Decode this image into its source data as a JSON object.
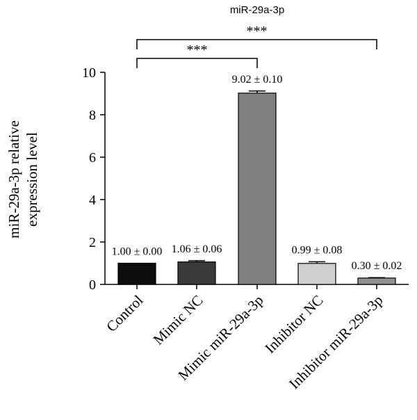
{
  "chart_data": {
    "type": "bar",
    "title": "miR-29a-3p",
    "ylabel_line1": "miR-29a-3p relative",
    "ylabel_line2": "expression level",
    "xlabel": "",
    "ylim": [
      0,
      10
    ],
    "yticks": [
      0,
      2,
      4,
      6,
      8,
      10
    ],
    "categories": [
      "Control",
      "Mimic NC",
      "Mimic miR-29a-3p",
      "Inhibitor NC",
      "Inhibitor miR-29a-3p"
    ],
    "values": [
      1.0,
      1.06,
      9.02,
      0.99,
      0.3
    ],
    "errors": [
      0.0,
      0.06,
      0.1,
      0.08,
      0.02
    ],
    "value_labels": [
      "1.00 ± 0.00",
      "1.06 ± 0.06",
      "9.02 ± 0.10",
      "0.99 ± 0.08",
      "0.30 ± 0.02"
    ],
    "bar_colors": [
      "#0d0d0d",
      "#3a3a3a",
      "#7f7f7f",
      "#cfcfcf",
      "#8f8f8f"
    ],
    "significance": [
      {
        "from": "Control",
        "to": "Mimic miR-29a-3p",
        "label": "***"
      },
      {
        "from": "Control",
        "to": "Inhibitor miR-29a-3p",
        "label": "***"
      }
    ],
    "grid": false,
    "legend": "none"
  }
}
